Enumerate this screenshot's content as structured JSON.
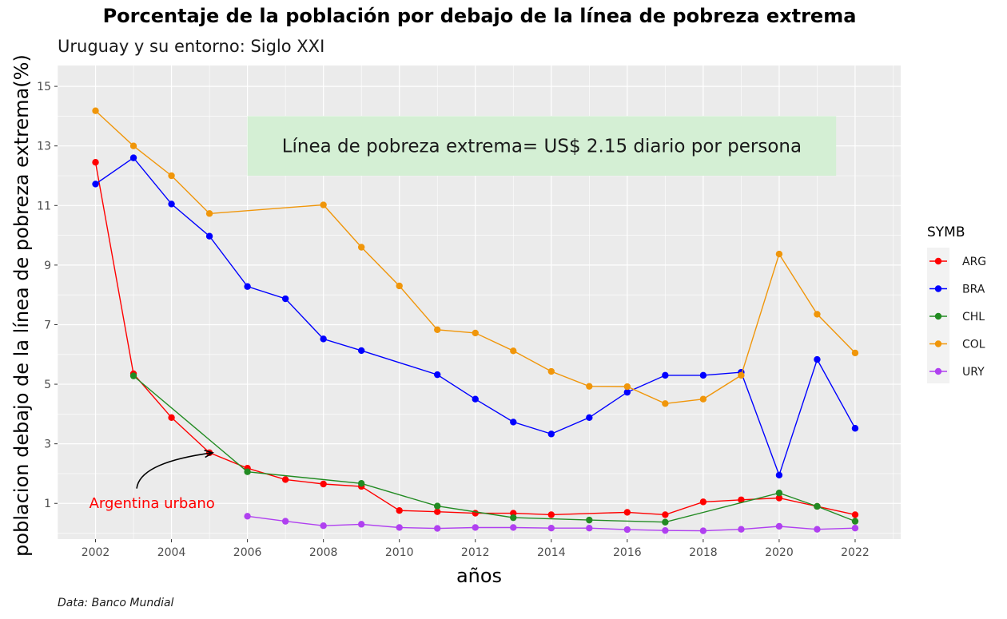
{
  "chart_data": {
    "type": "line",
    "title": "Porcentaje de la población por debajo de la línea de pobreza extrema",
    "subtitle": "Uruguay y su entorno: Siglo XXI",
    "xlabel": "años",
    "ylabel": "poblacion debajo de la línea de pobreza extrema(%)",
    "caption": "Data: Banco Mundial",
    "xlim": [
      2001,
      2023.2
    ],
    "ylim": [
      -0.2,
      15.7
    ],
    "x_ticks": [
      2002,
      2004,
      2006,
      2008,
      2010,
      2012,
      2014,
      2016,
      2018,
      2020,
      2022
    ],
    "x_tick_labels": [
      "2002",
      "2004",
      "2006",
      "2008",
      "2010",
      "2012",
      "2014",
      "2016",
      "2018",
      "2020",
      "2022"
    ],
    "y_ticks": [
      1,
      3,
      5,
      7,
      9,
      11,
      13,
      15
    ],
    "y_tick_labels": [
      "1",
      "3",
      "5",
      "7",
      "9",
      "11",
      "13",
      "15"
    ],
    "grid": true,
    "legend": {
      "title": "SYMB",
      "position": "right"
    },
    "series": [
      {
        "name": "ARG",
        "color": "#ff0000",
        "points": [
          [
            2002,
            12.45
          ],
          [
            2003,
            5.35
          ],
          [
            2004,
            3.88
          ],
          [
            2005,
            2.7
          ],
          [
            2006,
            2.18
          ],
          [
            2007,
            1.8
          ],
          [
            2008,
            1.65
          ],
          [
            2009,
            1.57
          ],
          [
            2010,
            0.76
          ],
          [
            2011,
            0.72
          ],
          [
            2012,
            0.67
          ],
          [
            2013,
            0.67
          ],
          [
            2014,
            0.62
          ],
          [
            2016,
            0.7
          ],
          [
            2017,
            0.62
          ],
          [
            2018,
            1.05
          ],
          [
            2019,
            1.12
          ],
          [
            2020,
            1.18
          ],
          [
            2021,
            0.9
          ],
          [
            2022,
            0.62
          ]
        ]
      },
      {
        "name": "BRA",
        "color": "#0000ff",
        "points": [
          [
            2002,
            11.72
          ],
          [
            2003,
            12.6
          ],
          [
            2004,
            11.05
          ],
          [
            2005,
            9.97
          ],
          [
            2006,
            8.28
          ],
          [
            2007,
            7.87
          ],
          [
            2008,
            6.52
          ],
          [
            2009,
            6.13
          ],
          [
            2011,
            5.32
          ],
          [
            2012,
            4.5
          ],
          [
            2013,
            3.73
          ],
          [
            2014,
            3.33
          ],
          [
            2015,
            3.88
          ],
          [
            2016,
            4.73
          ],
          [
            2017,
            5.3
          ],
          [
            2018,
            5.3
          ],
          [
            2019,
            5.4
          ],
          [
            2020,
            1.95
          ],
          [
            2021,
            5.83
          ],
          [
            2022,
            3.52
          ]
        ]
      },
      {
        "name": "CHL",
        "color": "#228b22",
        "points": [
          [
            2003,
            5.28
          ],
          [
            2006,
            2.06
          ],
          [
            2009,
            1.67
          ],
          [
            2011,
            0.91
          ],
          [
            2013,
            0.52
          ],
          [
            2015,
            0.44
          ],
          [
            2017,
            0.37
          ],
          [
            2020,
            1.35
          ],
          [
            2021,
            0.9
          ],
          [
            2022,
            0.4
          ]
        ]
      },
      {
        "name": "COL",
        "color": "#f0960a",
        "points": [
          [
            2002,
            14.18
          ],
          [
            2003,
            13.0
          ],
          [
            2004,
            12.0
          ],
          [
            2005,
            10.73
          ],
          [
            2008,
            11.02
          ],
          [
            2009,
            9.6
          ],
          [
            2010,
            8.3
          ],
          [
            2011,
            6.83
          ],
          [
            2012,
            6.72
          ],
          [
            2013,
            6.12
          ],
          [
            2014,
            5.43
          ],
          [
            2015,
            4.93
          ],
          [
            2016,
            4.92
          ],
          [
            2017,
            4.35
          ],
          [
            2018,
            4.5
          ],
          [
            2019,
            5.3
          ],
          [
            2020,
            9.37
          ],
          [
            2021,
            7.35
          ],
          [
            2022,
            6.05
          ]
        ]
      },
      {
        "name": "URY",
        "color": "#b040f0",
        "points": [
          [
            2006,
            0.57
          ],
          [
            2007,
            0.4
          ],
          [
            2008,
            0.25
          ],
          [
            2009,
            0.3
          ],
          [
            2010,
            0.19
          ],
          [
            2011,
            0.16
          ],
          [
            2012,
            0.19
          ],
          [
            2013,
            0.19
          ],
          [
            2014,
            0.17
          ],
          [
            2015,
            0.17
          ],
          [
            2016,
            0.12
          ],
          [
            2017,
            0.09
          ],
          [
            2018,
            0.08
          ],
          [
            2019,
            0.13
          ],
          [
            2020,
            0.23
          ],
          [
            2021,
            0.13
          ],
          [
            2022,
            0.17
          ]
        ]
      }
    ],
    "annotations": {
      "note": {
        "text": "Línea de pobreza extrema= US$ 2.15 diario por persona",
        "x_range": [
          2006,
          2021.5
        ],
        "y_range": [
          12,
          14
        ],
        "fill": "#d4efd4"
      },
      "arg_label": {
        "text": "Argentina urbano",
        "x": 2004.75,
        "y": 1.0,
        "color": "#ff0000",
        "arrow_from": [
          2003,
          1.5
        ],
        "arrow_to": [
          2005,
          2.7
        ]
      }
    }
  }
}
